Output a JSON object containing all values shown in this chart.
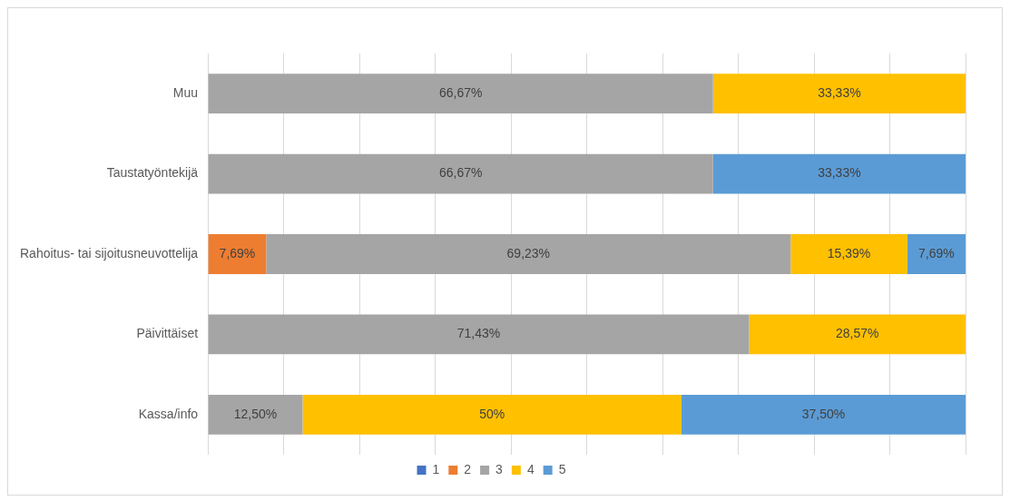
{
  "chart_data": {
    "type": "bar",
    "orientation": "horizontal",
    "stacked": true,
    "categories": [
      "Muu",
      "Taustatyöntekijä",
      "Rahoitus- tai sijoitusneuvottelija",
      "Päivittäiset",
      "Kassa/info"
    ],
    "series": [
      {
        "name": "1",
        "color": "#4472c4",
        "values": [
          null,
          null,
          null,
          null,
          null
        ],
        "value_labels": [
          null,
          null,
          null,
          null,
          null
        ]
      },
      {
        "name": "2",
        "color": "#ed7d31",
        "values": [
          null,
          null,
          7.69,
          null,
          null
        ],
        "value_labels": [
          null,
          null,
          "7,69%",
          null,
          null
        ]
      },
      {
        "name": "3",
        "color": "#a5a5a5",
        "values": [
          66.67,
          66.67,
          69.23,
          71.43,
          12.5
        ],
        "value_labels": [
          "66,67%",
          "66,67%",
          "69,23%",
          "71,43%",
          "12,50%"
        ]
      },
      {
        "name": "4",
        "color": "#ffc000",
        "values": [
          33.33,
          null,
          15.39,
          28.57,
          50
        ],
        "value_labels": [
          "33,33%",
          null,
          "15,39%",
          "28,57%",
          "50%"
        ]
      },
      {
        "name": "5",
        "color": "#5b9bd5",
        "values": [
          null,
          33.33,
          7.69,
          null,
          37.5
        ],
        "value_labels": [
          null,
          "33,33%",
          "7,69%",
          null,
          "37,50%"
        ]
      }
    ],
    "xlim": [
      0,
      100
    ],
    "xticks": [
      {
        "value": 0,
        "label": null
      },
      {
        "value": 10,
        "label": null
      },
      {
        "value": 20,
        "label": null
      },
      {
        "value": 30,
        "label": null
      },
      {
        "value": 40,
        "label": null
      },
      {
        "value": 50,
        "label": null
      },
      {
        "value": 60,
        "label": null
      },
      {
        "value": 70,
        "label": null
      },
      {
        "value": 80,
        "label": null
      },
      {
        "value": 90,
        "label": null
      },
      {
        "value": 100,
        "label": null
      }
    ],
    "tick_labels": "y",
    "grid": "x",
    "legend": "bottom"
  }
}
